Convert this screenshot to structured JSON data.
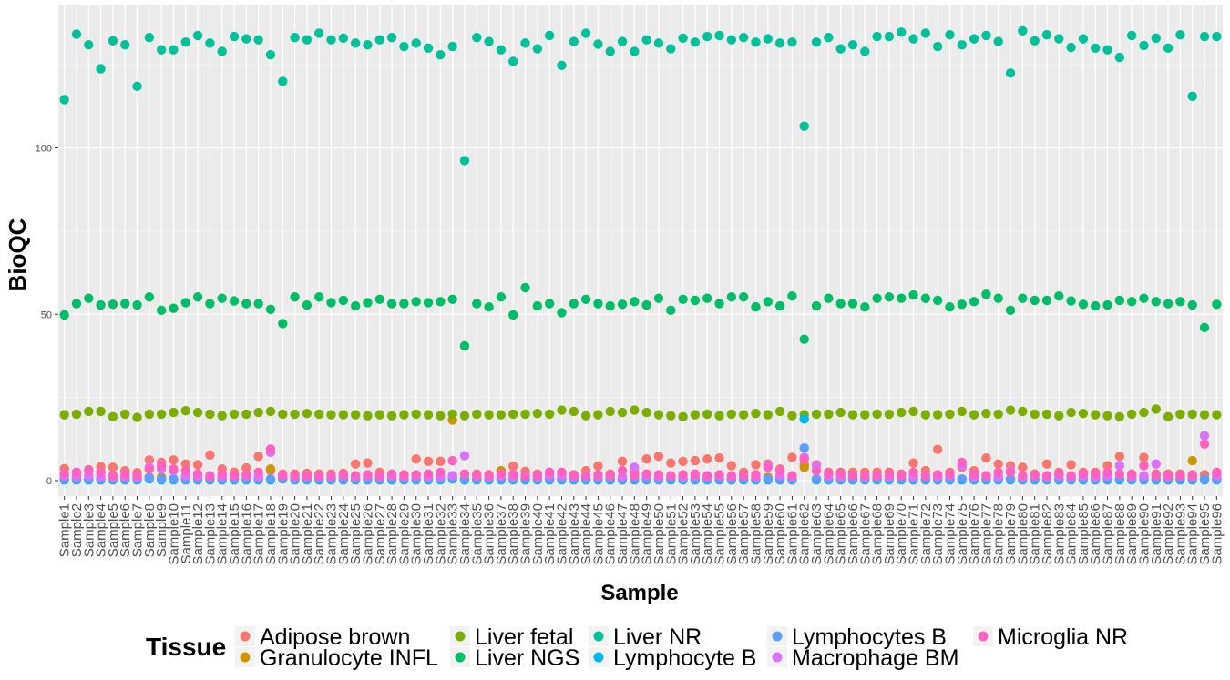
{
  "chart_data": {
    "type": "scatter",
    "title": "",
    "xlabel": "Sample",
    "ylabel": "BioQC",
    "ylim": [
      -4,
      142
    ],
    "yticks": [
      0,
      50,
      100
    ],
    "grid": true,
    "legend_position": "bottom",
    "legend_title": "Tissue",
    "background_color": "#ebebeb",
    "categories": [
      "Sample1",
      "Sample2",
      "Sample3",
      "Sample4",
      "Sample5",
      "Sample6",
      "Sample7",
      "Sample8",
      "Sample9",
      "Sample10",
      "Sample11",
      "Sample12",
      "Sample13",
      "Sample14",
      "Sample15",
      "Sample16",
      "Sample17",
      "Sample18",
      "Sample19",
      "Sample20",
      "Sample21",
      "Sample22",
      "Sample23",
      "Sample24",
      "Sample25",
      "Sample26",
      "Sample27",
      "Sample28",
      "Sample29",
      "Sample30",
      "Sample31",
      "Sample32",
      "Sample33",
      "Sample34",
      "Sample35",
      "Sample36",
      "Sample37",
      "Sample38",
      "Sample39",
      "Sample40",
      "Sample41",
      "Sample42",
      "Sample43",
      "Sample44",
      "Sample45",
      "Sample46",
      "Sample47",
      "Sample48",
      "Sample49",
      "Sample50",
      "Sample51",
      "Sample52",
      "Sample53",
      "Sample54",
      "Sample55",
      "Sample56",
      "Sample57",
      "Sample58",
      "Sample59",
      "Sample60",
      "Sample61",
      "Sample62",
      "Sample63",
      "Sample64",
      "Sample65",
      "Sample66",
      "Sample67",
      "Sample68",
      "Sample69",
      "Sample70",
      "Sample71",
      "Sample72",
      "Sample73",
      "Sample74",
      "Sample75",
      "Sample76",
      "Sample77",
      "Sample78",
      "Sample79",
      "Sample80",
      "Sample81",
      "Sample82",
      "Sample83",
      "Sample84",
      "Sample85",
      "Sample86",
      "Sample87",
      "Sample88",
      "Sample89",
      "Sample90",
      "Sample91",
      "Sample92",
      "Sample93",
      "Sample94",
      "Sample95",
      "Sample96"
    ],
    "series": [
      {
        "name": "Adipose brown",
        "color": "#F8766D",
        "values": [
          3.6,
          2.5,
          3.3,
          4.2,
          4.0,
          3.0,
          2.4,
          6.2,
          5.5,
          6.2,
          5.0,
          4.8,
          7.7,
          3.5,
          2.5,
          3.8,
          7.3,
          3.0,
          2.0,
          2.0,
          2.2,
          2.0,
          2.0,
          2.2,
          5.0,
          5.3,
          2.5,
          1.8,
          1.8,
          6.5,
          5.8,
          5.8,
          1.5,
          2.0,
          2.0,
          1.8,
          2.8,
          4.4,
          2.8,
          2.0,
          2.5,
          2.0,
          1.8,
          3.0,
          4.4,
          2.0,
          5.8,
          2.5,
          6.5,
          7.3,
          5.3,
          5.8,
          6.0,
          6.5,
          6.8,
          4.5,
          2.5,
          4.8,
          5.0,
          3.5,
          7.0,
          4.8,
          4.8,
          2.5,
          2.5,
          2.5,
          2.5,
          2.5,
          2.5,
          2.0,
          5.3,
          3.0,
          9.4,
          2.5,
          4.0,
          3.0,
          6.8,
          5.0,
          4.5,
          4.0,
          2.0,
          5.0,
          2.5,
          4.8,
          2.5,
          2.5,
          4.5,
          7.3,
          2.0,
          7.0,
          2.0,
          2.0,
          2.0,
          1.8,
          1.8,
          2.2
        ]
      },
      {
        "name": "Granulocyte INFL",
        "color": "#CD9600",
        "values": [
          0.5,
          0.5,
          0.5,
          0.5,
          0.5,
          0.5,
          0.5,
          1.0,
          1.0,
          0.5,
          0.5,
          0.5,
          0.5,
          0.5,
          0.5,
          0.5,
          0.5,
          3.5,
          0.5,
          0.5,
          0.5,
          0.5,
          0.5,
          0.5,
          0.5,
          0.5,
          0.5,
          0.5,
          0.5,
          0.5,
          0.5,
          0.5,
          18.2,
          0.5,
          0.5,
          0.5,
          3.0,
          0.5,
          0.5,
          0.5,
          0.5,
          0.5,
          0.5,
          0.5,
          0.5,
          0.5,
          0.5,
          0.5,
          0.5,
          0.5,
          0.5,
          0.5,
          0.5,
          0.5,
          0.5,
          0.5,
          0.5,
          0.5,
          1.0,
          0.5,
          0.5,
          4.0,
          0.5,
          0.5,
          0.5,
          0.5,
          0.5,
          0.5,
          0.5,
          0.5,
          0.5,
          0.5,
          0.5,
          0.5,
          0.5,
          0.5,
          0.5,
          0.5,
          0.5,
          0.5,
          0.5,
          0.5,
          0.5,
          0.5,
          0.5,
          0.5,
          0.5,
          0.5,
          0.5,
          1.0,
          0.5,
          0.5,
          0.5,
          6.0,
          0.5,
          0.5
        ]
      },
      {
        "name": "Liver fetal",
        "color": "#7CAE00",
        "values": [
          19.8,
          20.0,
          20.8,
          20.8,
          19.2,
          20.0,
          19.0,
          20.0,
          20.0,
          20.5,
          21.0,
          20.5,
          20.0,
          19.5,
          20.0,
          20.0,
          20.5,
          20.8,
          20.0,
          20.0,
          20.2,
          20.0,
          19.8,
          19.8,
          19.8,
          19.5,
          19.8,
          19.5,
          19.8,
          20.0,
          19.8,
          19.5,
          20.0,
          19.5,
          20.0,
          19.8,
          19.8,
          20.0,
          20.0,
          20.2,
          20.0,
          21.2,
          20.8,
          19.5,
          19.8,
          20.8,
          20.5,
          21.2,
          20.5,
          19.8,
          19.5,
          19.2,
          19.8,
          20.0,
          19.5,
          20.0,
          19.8,
          20.2,
          19.8,
          20.8,
          19.5,
          19.8,
          20.0,
          20.0,
          20.5,
          19.8,
          19.8,
          20.0,
          20.0,
          20.5,
          20.8,
          19.8,
          19.8,
          20.0,
          20.8,
          19.8,
          20.2,
          20.0,
          21.2,
          20.8,
          20.0,
          20.0,
          19.5,
          20.5,
          20.2,
          19.8,
          19.5,
          19.2,
          20.0,
          20.5,
          21.5,
          19.2,
          20.0,
          20.0,
          19.8,
          19.8
        ]
      },
      {
        "name": "Liver NGS",
        "color": "#00BE67",
        "values": [
          49.8,
          53.2,
          54.8,
          52.8,
          53.0,
          53.2,
          52.8,
          55.2,
          51.2,
          51.8,
          53.5,
          55.2,
          53.2,
          54.8,
          54.0,
          53.2,
          53.2,
          51.5,
          47.2,
          55.2,
          52.8,
          55.2,
          53.5,
          54.2,
          52.5,
          53.5,
          54.5,
          53.2,
          53.2,
          53.8,
          53.5,
          53.8,
          54.5,
          40.5,
          53.2,
          52.2,
          55.2,
          49.8,
          58.0,
          52.5,
          53.2,
          50.5,
          53.2,
          54.5,
          53.2,
          52.5,
          53.0,
          53.8,
          52.8,
          54.8,
          51.2,
          54.5,
          54.2,
          54.8,
          53.2,
          55.2,
          55.2,
          52.2,
          53.8,
          52.5,
          55.5,
          42.5,
          52.5,
          54.8,
          53.2,
          53.2,
          52.2,
          54.8,
          55.2,
          54.8,
          55.8,
          54.8,
          54.2,
          52.2,
          53.0,
          53.8,
          56.0,
          54.8,
          51.2,
          54.8,
          54.2,
          54.2,
          55.5,
          54.0,
          53.0,
          52.5,
          52.8,
          54.2,
          53.8,
          54.8,
          53.8,
          53.2,
          53.8,
          52.8,
          46.0,
          53.0
        ]
      },
      {
        "name": "Liver NR",
        "color": "#00C19A",
        "values": [
          114.5,
          134.2,
          131.0,
          123.8,
          132.2,
          131.0,
          118.5,
          133.2,
          129.5,
          129.5,
          131.8,
          133.8,
          131.5,
          129.0,
          133.5,
          132.8,
          132.5,
          128.0,
          120.0,
          133.2,
          132.5,
          134.5,
          132.5,
          133.0,
          131.5,
          131.0,
          132.5,
          133.2,
          130.5,
          131.5,
          130.0,
          128.0,
          130.5,
          96.2,
          133.2,
          132.0,
          129.5,
          126.0,
          131.5,
          129.8,
          133.8,
          124.8,
          132.0,
          134.5,
          131.2,
          129.0,
          132.0,
          129.0,
          132.5,
          131.5,
          129.8,
          133.0,
          131.8,
          133.5,
          133.8,
          132.5,
          133.2,
          131.8,
          132.8,
          131.5,
          131.8,
          106.5,
          131.8,
          133.2,
          129.8,
          131.0,
          129.0,
          133.5,
          133.5,
          134.8,
          132.8,
          134.5,
          130.5,
          134.0,
          131.0,
          132.8,
          133.8,
          132.0,
          122.5,
          135.2,
          132.2,
          134.0,
          132.8,
          130.2,
          132.8,
          130.0,
          129.5,
          127.2,
          133.8,
          130.8,
          133.0,
          130.0,
          134.0,
          115.5,
          133.5,
          133.5
        ]
      },
      {
        "name": "Lymphocyte B",
        "color": "#00B8E7",
        "values": [
          0.2,
          0.2,
          0.2,
          0.2,
          0.2,
          0.2,
          0.2,
          0.5,
          0.2,
          0.2,
          0.2,
          0.2,
          0.2,
          0.2,
          0.2,
          0.2,
          0.2,
          0.2,
          0.5,
          0.2,
          0.2,
          0.2,
          0.2,
          0.2,
          0.2,
          0.2,
          0.2,
          0.2,
          0.2,
          0.2,
          0.2,
          0.2,
          0.5,
          0.2,
          0.2,
          0.2,
          0.2,
          0.2,
          0.2,
          0.2,
          0.2,
          0.2,
          0.2,
          0.2,
          0.2,
          0.2,
          0.2,
          0.2,
          0.2,
          0.2,
          0.2,
          0.2,
          0.2,
          0.2,
          0.2,
          0.2,
          0.2,
          0.2,
          0.2,
          0.2,
          0.2,
          18.5,
          0.2,
          0.2,
          0.2,
          0.2,
          0.2,
          0.2,
          0.2,
          0.2,
          0.2,
          0.2,
          0.2,
          0.2,
          0.2,
          0.2,
          0.2,
          0.2,
          0.2,
          0.2,
          0.2,
          0.2,
          0.2,
          0.2,
          0.2,
          0.2,
          0.2,
          0.2,
          0.2,
          0.2,
          0.2,
          0.2,
          0.2,
          0.2,
          0.2,
          0.2
        ]
      },
      {
        "name": "Lymphocytes B",
        "color": "#619CFF",
        "values": [
          0.5,
          0.5,
          0.5,
          0.5,
          0.5,
          0.5,
          0.5,
          0.8,
          0.5,
          0.5,
          0.5,
          0.5,
          0.5,
          0.5,
          0.5,
          0.5,
          0.5,
          0.5,
          0.8,
          0.5,
          0.5,
          0.5,
          0.5,
          0.5,
          0.5,
          0.5,
          0.5,
          0.5,
          0.5,
          0.5,
          0.5,
          0.5,
          1.0,
          0.5,
          0.5,
          0.5,
          0.5,
          0.5,
          0.5,
          0.5,
          0.5,
          0.5,
          0.5,
          0.5,
          0.5,
          0.5,
          0.5,
          0.5,
          0.5,
          0.5,
          0.5,
          0.5,
          0.5,
          0.5,
          0.5,
          0.5,
          0.5,
          0.5,
          0.5,
          0.5,
          0.5,
          9.8,
          0.5,
          0.5,
          0.5,
          0.5,
          0.5,
          0.5,
          0.5,
          0.5,
          0.5,
          0.5,
          0.5,
          0.5,
          0.5,
          0.5,
          0.5,
          0.5,
          0.5,
          0.5,
          0.5,
          0.5,
          0.5,
          0.5,
          0.5,
          0.5,
          0.5,
          0.5,
          0.5,
          0.5,
          0.5,
          0.5,
          0.5,
          0.5,
          0.5,
          0.5
        ]
      },
      {
        "name": "Macrophage BM",
        "color": "#DB72FB",
        "values": [
          1.5,
          1.2,
          1.5,
          1.2,
          1.0,
          1.2,
          1.0,
          4.0,
          3.5,
          3.0,
          1.5,
          1.2,
          1.5,
          1.2,
          1.5,
          1.5,
          1.2,
          8.5,
          1.5,
          1.2,
          1.2,
          1.2,
          1.2,
          1.5,
          1.2,
          1.5,
          1.2,
          1.5,
          1.2,
          1.5,
          1.2,
          1.2,
          1.5,
          7.5,
          1.5,
          1.2,
          1.5,
          1.2,
          1.5,
          1.2,
          1.5,
          1.5,
          1.2,
          1.5,
          1.2,
          1.5,
          1.2,
          4.0,
          1.5,
          1.2,
          1.5,
          1.2,
          1.5,
          1.2,
          1.5,
          1.2,
          1.5,
          1.2,
          4.5,
          1.5,
          1.2,
          7.0,
          4.5,
          1.5,
          1.2,
          1.5,
          1.2,
          1.5,
          1.2,
          1.5,
          1.2,
          1.5,
          1.2,
          1.5,
          4.5,
          1.2,
          1.5,
          1.2,
          3.0,
          1.2,
          1.5,
          1.2,
          1.5,
          1.2,
          1.5,
          1.2,
          1.5,
          4.5,
          1.2,
          1.5,
          5.0,
          1.2,
          1.5,
          1.2,
          13.5,
          1.5
        ]
      },
      {
        "name": "Microglia NR",
        "color": "#FF61C3",
        "values": [
          2.0,
          2.5,
          3.0,
          2.5,
          1.5,
          2.0,
          1.5,
          3.5,
          4.5,
          3.5,
          3.0,
          2.0,
          1.2,
          2.0,
          1.5,
          1.8,
          2.5,
          9.5,
          1.5,
          1.5,
          1.5,
          1.5,
          1.5,
          1.8,
          1.5,
          1.8,
          1.5,
          2.0,
          1.5,
          1.8,
          2.0,
          2.5,
          6.0,
          2.0,
          1.5,
          1.5,
          2.0,
          2.0,
          1.5,
          1.5,
          2.5,
          2.5,
          1.5,
          1.5,
          1.8,
          1.5,
          3.0,
          1.5,
          2.0,
          1.8,
          1.5,
          1.8,
          2.0,
          1.5,
          1.8,
          1.5,
          1.5,
          1.8,
          4.0,
          3.0,
          1.5,
          6.5,
          3.0,
          2.0,
          2.0,
          1.5,
          1.5,
          1.5,
          1.8,
          1.5,
          2.5,
          1.5,
          1.8,
          2.0,
          5.5,
          2.0,
          1.5,
          2.5,
          2.5,
          1.5,
          1.5,
          1.5,
          2.0,
          1.5,
          2.0,
          2.0,
          2.5,
          2.0,
          1.8,
          4.5,
          1.5,
          1.5,
          1.5,
          1.5,
          11.0,
          2.5
        ]
      }
    ]
  }
}
